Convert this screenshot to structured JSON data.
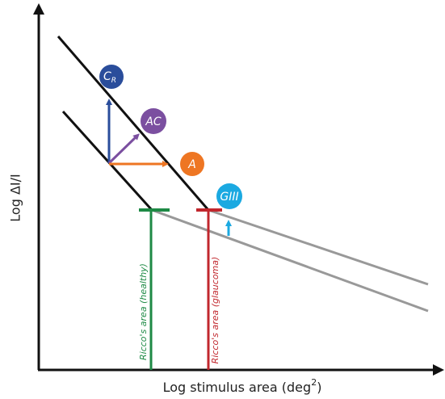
{
  "y_axis": {
    "label": "Log ΔI/I"
  },
  "x_axis": {
    "label_main": "Log stimulus area (deg",
    "label_sup": "2",
    "label_end": ")"
  },
  "nodes": [
    {
      "label": "C",
      "subscript": "R"
    },
    {
      "label": "AC"
    },
    {
      "label": "A"
    },
    {
      "label": "GIII"
    }
  ],
  "markers": [
    {
      "label": "Ricco's area (healthy)"
    },
    {
      "label": "Ricco's area (glaucoma)"
    }
  ]
}
